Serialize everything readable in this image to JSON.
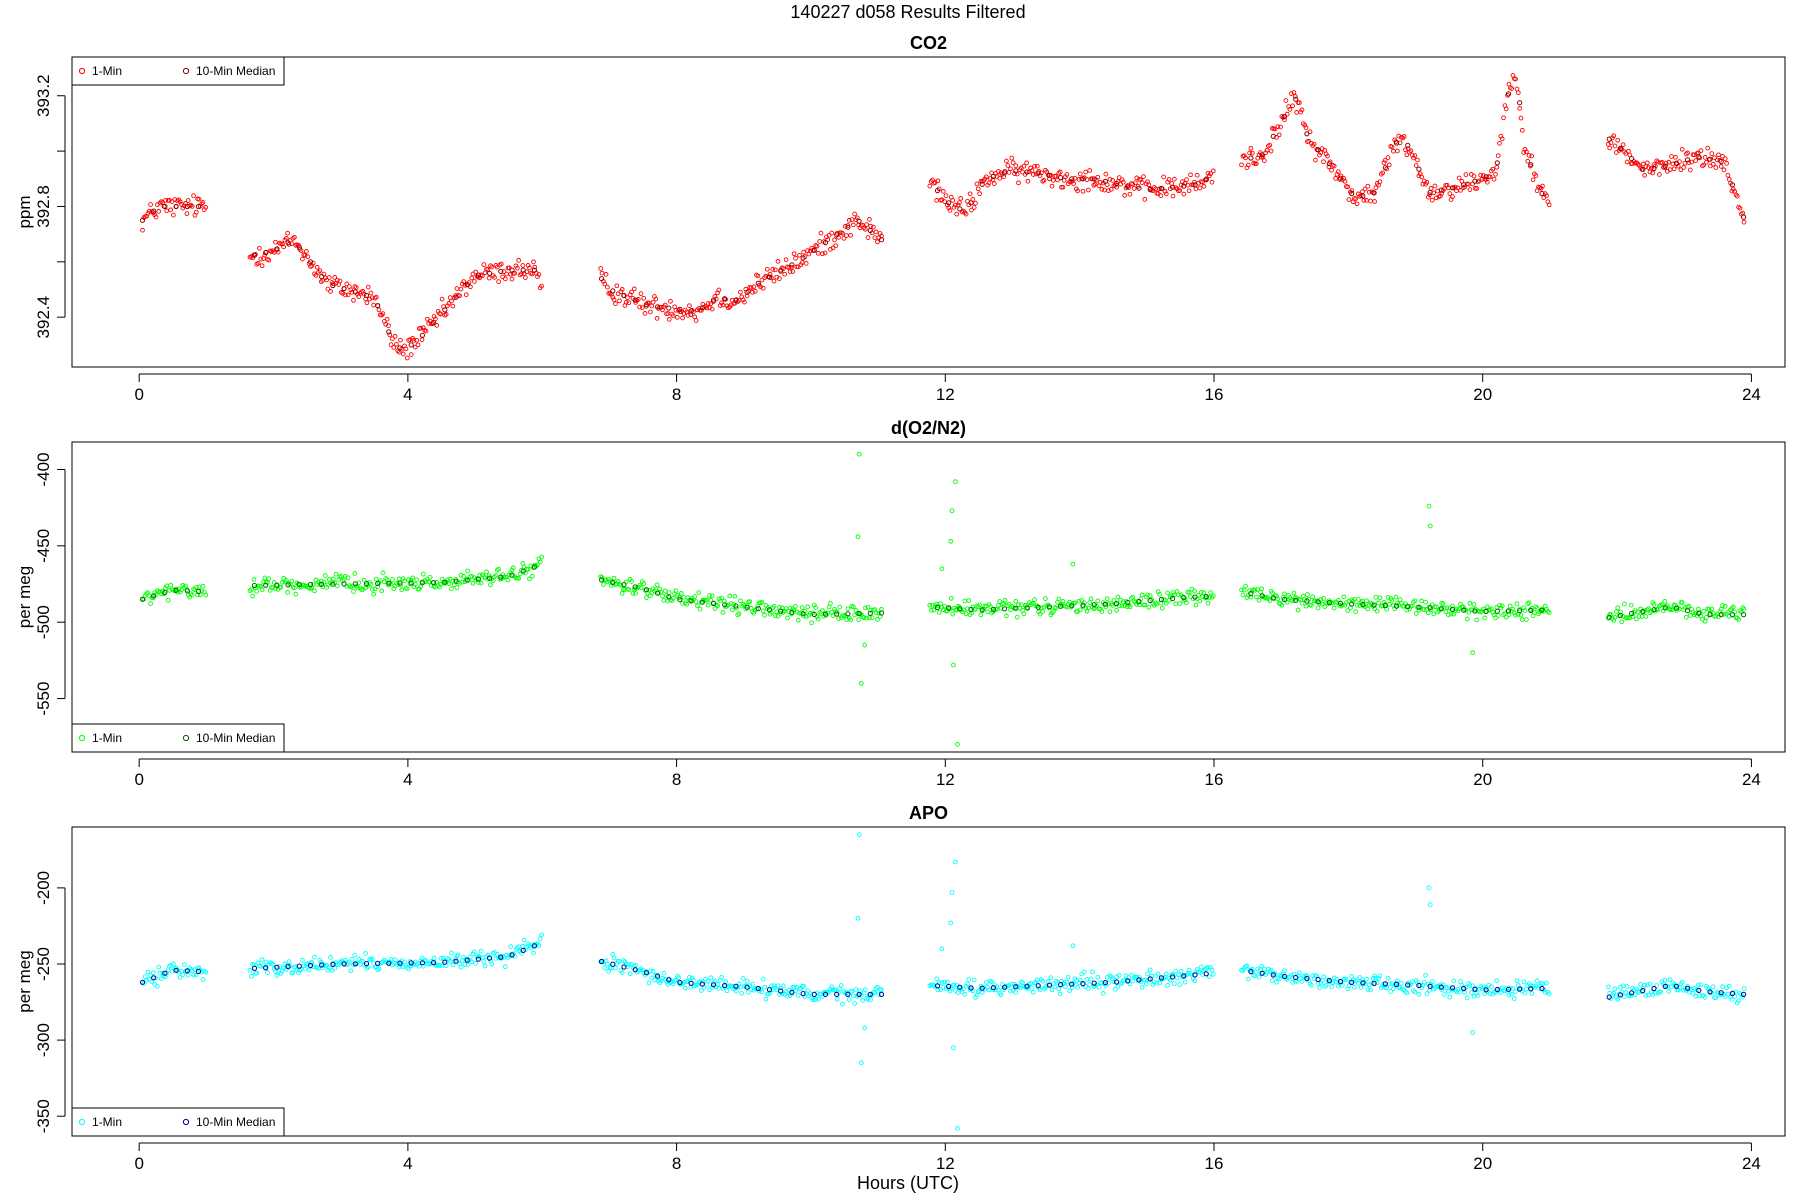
{
  "page": {
    "title": "140227   d058   Results Filtered"
  },
  "axes": {
    "xlabel": "Hours (UTC)"
  },
  "chart_data": [
    {
      "type": "scatter",
      "title": "CO2",
      "xlabel": "",
      "ylabel": "ppm",
      "xlim": [
        -1.0,
        24.5
      ],
      "ylim": [
        392.22,
        393.34
      ],
      "xticks": [
        0,
        4,
        8,
        12,
        16,
        20,
        24
      ],
      "yticks": [
        392.4,
        392.6,
        392.8,
        393.0,
        393.2
      ],
      "ytick_labels": [
        "392.4",
        "",
        "392.8",
        "",
        "393.2"
      ],
      "grid": false,
      "legend": {
        "placement": "top-left",
        "entries": [
          "1-Min",
          "10-Min Median"
        ]
      },
      "colors": {
        "raw": "#ff0000",
        "median": "#8b0000"
      },
      "gaps": [
        [
          1.0,
          1.65
        ],
        [
          6.0,
          6.85
        ],
        [
          11.05,
          11.75
        ],
        [
          16.0,
          16.4
        ],
        [
          21.0,
          21.85
        ]
      ],
      "noise": 0.03,
      "series": [
        {
          "name": "1-Min",
          "marker": "open-circle",
          "color": "#ff0000",
          "x": [
            0.05,
            0.3,
            0.7,
            0.95,
            1.65,
            2.0,
            2.3,
            2.55,
            2.8,
            3.1,
            3.5,
            3.8,
            3.95,
            4.2,
            4.6,
            5.0,
            5.5,
            5.9,
            6.0,
            6.85,
            7.0,
            7.3,
            7.6,
            8.0,
            8.3,
            8.6,
            8.9,
            9.2,
            9.5,
            9.8,
            10.1,
            10.4,
            10.7,
            11.05,
            11.75,
            12.0,
            12.3,
            12.6,
            13.0,
            13.4,
            13.8,
            14.2,
            14.6,
            15.0,
            15.4,
            15.8,
            16.0,
            16.4,
            16.7,
            17.0,
            17.2,
            17.4,
            17.8,
            18.1,
            18.4,
            18.7,
            18.9,
            19.2,
            19.6,
            20.0,
            20.2,
            20.35,
            20.5,
            20.6,
            20.8,
            21.0,
            21.85,
            22.1,
            22.4,
            22.8,
            23.2,
            23.6,
            23.9
          ],
          "y": [
            392.75,
            392.8,
            392.8,
            392.8,
            392.62,
            392.64,
            392.68,
            392.6,
            392.52,
            392.5,
            392.47,
            392.3,
            392.28,
            392.33,
            392.44,
            392.55,
            392.57,
            392.57,
            392.47,
            392.55,
            392.5,
            392.47,
            392.44,
            392.43,
            392.42,
            392.47,
            392.46,
            392.52,
            392.56,
            392.6,
            392.65,
            392.7,
            392.75,
            392.68,
            392.9,
            392.82,
            392.78,
            392.9,
            392.93,
            392.92,
            392.9,
            392.9,
            392.88,
            392.86,
            392.87,
            392.88,
            392.92,
            392.97,
            392.98,
            393.1,
            393.2,
            393.05,
            392.93,
            392.83,
            392.85,
            393.03,
            393.02,
            392.85,
            392.87,
            392.9,
            392.93,
            393.18,
            393.3,
            393.05,
            392.88,
            392.8,
            393.05,
            393.0,
            392.93,
            392.95,
            392.98,
            392.96,
            392.75
          ]
        },
        {
          "name": "10-Min Median",
          "marker": "open-circle",
          "color": "#8b0000",
          "x": [
            0.05,
            0.3,
            0.7,
            0.95,
            1.65,
            2.0,
            2.3,
            2.55,
            2.8,
            3.1,
            3.5,
            3.8,
            3.95,
            4.2,
            4.6,
            5.0,
            5.5,
            5.9,
            6.0,
            6.85,
            7.0,
            7.3,
            7.6,
            8.0,
            8.3,
            8.6,
            8.9,
            9.2,
            9.5,
            9.8,
            10.1,
            10.4,
            10.7,
            11.05,
            11.75,
            12.0,
            12.3,
            12.6,
            13.0,
            13.4,
            13.8,
            14.2,
            14.6,
            15.0,
            15.4,
            15.8,
            16.0,
            16.4,
            16.7,
            17.0,
            17.2,
            17.4,
            17.8,
            18.1,
            18.4,
            18.7,
            18.9,
            19.2,
            19.6,
            20.0,
            20.2,
            20.35,
            20.5,
            20.6,
            20.8,
            21.0,
            21.85,
            22.1,
            22.4,
            22.8,
            23.2,
            23.6,
            23.9
          ],
          "y": [
            392.75,
            392.8,
            392.8,
            392.8,
            392.62,
            392.64,
            392.68,
            392.6,
            392.52,
            392.5,
            392.47,
            392.3,
            392.28,
            392.33,
            392.44,
            392.55,
            392.57,
            392.57,
            392.47,
            392.55,
            392.5,
            392.47,
            392.44,
            392.43,
            392.42,
            392.47,
            392.46,
            392.52,
            392.56,
            392.6,
            392.65,
            392.7,
            392.75,
            392.68,
            392.9,
            392.82,
            392.78,
            392.9,
            392.93,
            392.92,
            392.9,
            392.9,
            392.88,
            392.86,
            392.87,
            392.88,
            392.92,
            392.97,
            392.98,
            393.1,
            393.2,
            393.05,
            392.93,
            392.83,
            392.85,
            393.03,
            393.02,
            392.85,
            392.87,
            392.9,
            392.93,
            393.18,
            393.3,
            393.05,
            392.88,
            392.8,
            393.05,
            393.0,
            392.93,
            392.95,
            392.98,
            392.96,
            392.75
          ]
        }
      ],
      "outliers": []
    },
    {
      "type": "scatter",
      "title": "d(O2/N2)",
      "xlabel": "",
      "ylabel": "per meg",
      "xlim": [
        -1.0,
        24.5
      ],
      "ylim": [
        -585,
        -382
      ],
      "xticks": [
        0,
        4,
        8,
        12,
        16,
        20,
        24
      ],
      "yticks": [
        -400,
        -450,
        -500,
        -550
      ],
      "ytick_labels": [
        "-400",
        "-450",
        "-500",
        "-550"
      ],
      "grid": false,
      "legend": {
        "placement": "bottom-left",
        "entries": [
          "1-Min",
          "10-Min Median"
        ]
      },
      "colors": {
        "raw": "#00ff00",
        "median": "#006400"
      },
      "gaps": [
        [
          1.0,
          1.65
        ],
        [
          6.0,
          6.85
        ],
        [
          11.05,
          11.75
        ],
        [
          16.0,
          16.4
        ],
        [
          21.0,
          21.85
        ]
      ],
      "noise": 4,
      "series": [
        {
          "name": "1-Min",
          "marker": "open-circle",
          "color": "#00ff00",
          "x": [
            0.05,
            0.5,
            0.95,
            1.65,
            3.0,
            4.5,
            5.5,
            6.0,
            6.85,
            7.5,
            8.0,
            9.0,
            10.0,
            11.05,
            11.75,
            12.5,
            13.5,
            14.5,
            15.5,
            16.0,
            16.4,
            17.0,
            18.0,
            19.0,
            20.0,
            21.0,
            21.85,
            22.8,
            23.3,
            23.9
          ],
          "y": [
            -485,
            -479,
            -480,
            -476,
            -475,
            -474,
            -470,
            -462,
            -472,
            -478,
            -485,
            -490,
            -495,
            -494,
            -490,
            -492,
            -490,
            -488,
            -484,
            -483,
            -480,
            -485,
            -488,
            -490,
            -493,
            -492,
            -497,
            -490,
            -495,
            -495
          ]
        },
        {
          "name": "10-Min Median",
          "marker": "open-circle",
          "color": "#006400",
          "x": [
            0.05,
            0.5,
            0.95,
            1.65,
            3.0,
            4.5,
            5.5,
            6.0,
            6.85,
            7.5,
            8.0,
            9.0,
            10.0,
            11.05,
            11.75,
            12.5,
            13.5,
            14.5,
            15.5,
            16.0,
            16.4,
            17.0,
            18.0,
            19.0,
            20.0,
            21.0,
            21.85,
            22.8,
            23.3,
            23.9
          ],
          "y": [
            -485,
            -479,
            -480,
            -476,
            -475,
            -474,
            -470,
            -462,
            -472,
            -478,
            -485,
            -490,
            -495,
            -494,
            -490,
            -492,
            -490,
            -488,
            -484,
            -483,
            -480,
            -485,
            -488,
            -490,
            -493,
            -492,
            -497,
            -490,
            -495,
            -495
          ]
        }
      ],
      "outliers": [
        [
          10.72,
          -390
        ],
        [
          10.7,
          -444
        ],
        [
          10.75,
          -540
        ],
        [
          10.8,
          -515
        ],
        [
          12.15,
          -408
        ],
        [
          12.1,
          -427
        ],
        [
          12.08,
          -447
        ],
        [
          12.12,
          -528
        ],
        [
          12.18,
          -580
        ],
        [
          11.95,
          -465
        ],
        [
          19.2,
          -424
        ],
        [
          19.22,
          -437
        ],
        [
          19.85,
          -520
        ],
        [
          13.9,
          -462
        ]
      ]
    },
    {
      "type": "scatter",
      "title": "APO",
      "xlabel": "Hours (UTC)",
      "ylabel": "per meg",
      "xlim": [
        -1.0,
        24.5
      ],
      "ylim": [
        -363,
        -160
      ],
      "xticks": [
        0,
        4,
        8,
        12,
        16,
        20,
        24
      ],
      "yticks": [
        -200,
        -250,
        -300,
        -350
      ],
      "ytick_labels": [
        "-200",
        "-250",
        "-300",
        "-350"
      ],
      "grid": false,
      "legend": {
        "placement": "bottom-left",
        "entries": [
          "1-Min",
          "10-Min Median"
        ]
      },
      "colors": {
        "raw": "#00ffff",
        "median": "#00008b"
      },
      "gaps": [
        [
          1.0,
          1.65
        ],
        [
          6.0,
          6.85
        ],
        [
          11.05,
          11.75
        ],
        [
          16.0,
          16.4
        ],
        [
          21.0,
          21.85
        ]
      ],
      "noise": 4,
      "series": [
        {
          "name": "1-Min",
          "marker": "open-circle",
          "color": "#00ffff",
          "x": [
            0.05,
            0.5,
            0.95,
            1.65,
            3.0,
            4.5,
            5.5,
            6.0,
            6.85,
            7.5,
            8.0,
            9.0,
            10.0,
            11.05,
            11.75,
            12.5,
            13.5,
            14.5,
            15.5,
            16.0,
            16.4,
            17.0,
            18.0,
            19.0,
            20.0,
            21.0,
            21.85,
            22.8,
            23.3,
            23.9
          ],
          "y": [
            -262,
            -254,
            -255,
            -253,
            -250,
            -249,
            -245,
            -236,
            -248,
            -255,
            -262,
            -265,
            -270,
            -270,
            -264,
            -266,
            -264,
            -262,
            -258,
            -256,
            -254,
            -258,
            -262,
            -264,
            -267,
            -266,
            -272,
            -264,
            -268,
            -270
          ]
        },
        {
          "name": "10-Min Median",
          "marker": "open-circle",
          "color": "#00008b",
          "x": [
            0.05,
            0.5,
            0.95,
            1.65,
            3.0,
            4.5,
            5.5,
            6.0,
            6.85,
            7.5,
            8.0,
            9.0,
            10.0,
            11.05,
            11.75,
            12.5,
            13.5,
            14.5,
            15.5,
            16.0,
            16.4,
            17.0,
            18.0,
            19.0,
            20.0,
            21.0,
            21.85,
            22.8,
            23.3,
            23.9
          ],
          "y": [
            -262,
            -254,
            -255,
            -253,
            -250,
            -249,
            -245,
            -236,
            -248,
            -255,
            -262,
            -265,
            -270,
            -270,
            -264,
            -266,
            -264,
            -262,
            -258,
            -256,
            -254,
            -258,
            -262,
            -264,
            -267,
            -266,
            -272,
            -264,
            -268,
            -270
          ]
        }
      ],
      "outliers": [
        [
          10.72,
          -165
        ],
        [
          10.7,
          -220
        ],
        [
          10.75,
          -315
        ],
        [
          10.8,
          -292
        ],
        [
          12.15,
          -183
        ],
        [
          12.1,
          -203
        ],
        [
          12.08,
          -223
        ],
        [
          12.12,
          -305
        ],
        [
          12.18,
          -358
        ],
        [
          11.95,
          -240
        ],
        [
          19.2,
          -200
        ],
        [
          19.22,
          -211
        ],
        [
          19.85,
          -295
        ],
        [
          13.9,
          -238
        ]
      ]
    }
  ]
}
